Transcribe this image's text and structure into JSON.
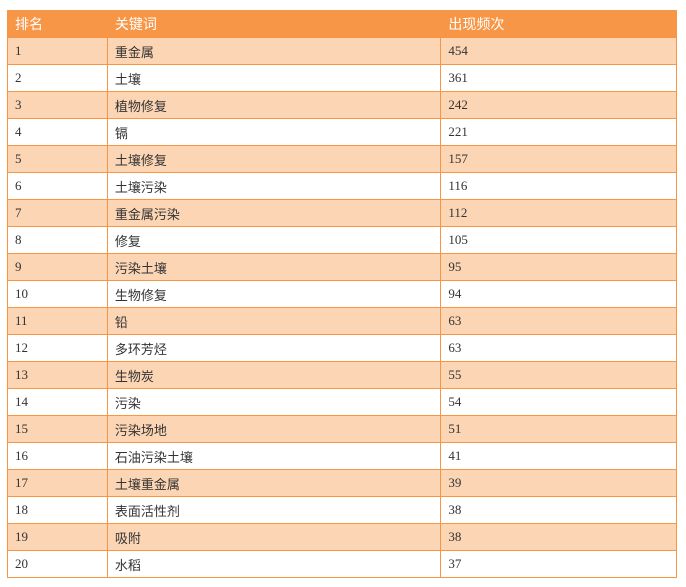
{
  "header": {
    "rank": "排名",
    "keyword": "关键词",
    "count": "出现频次"
  },
  "rows": [
    {
      "rank": "1",
      "keyword": "重金属",
      "count": "454"
    },
    {
      "rank": "2",
      "keyword": "土壤",
      "count": "361"
    },
    {
      "rank": "3",
      "keyword": "植物修复",
      "count": "242"
    },
    {
      "rank": "4",
      "keyword": "镉",
      "count": "221"
    },
    {
      "rank": "5",
      "keyword": "土壤修复",
      "count": "157"
    },
    {
      "rank": "6",
      "keyword": "土壤污染",
      "count": "116"
    },
    {
      "rank": "7",
      "keyword": "重金属污染",
      "count": "112"
    },
    {
      "rank": "8",
      "keyword": "修复",
      "count": "105"
    },
    {
      "rank": "9",
      "keyword": "污染土壤",
      "count": "95"
    },
    {
      "rank": "10",
      "keyword": "生物修复",
      "count": "94"
    },
    {
      "rank": "11",
      "keyword": "铅",
      "count": "63"
    },
    {
      "rank": "12",
      "keyword": "多环芳烃",
      "count": "63"
    },
    {
      "rank": "13",
      "keyword": "生物炭",
      "count": "55"
    },
    {
      "rank": "14",
      "keyword": "污染",
      "count": "54"
    },
    {
      "rank": "15",
      "keyword": "污染场地",
      "count": "51"
    },
    {
      "rank": "16",
      "keyword": "石油污染土壤",
      "count": "41"
    },
    {
      "rank": "17",
      "keyword": "土壤重金属",
      "count": "39"
    },
    {
      "rank": "18",
      "keyword": "表面活性剂",
      "count": "38"
    },
    {
      "rank": "19",
      "keyword": "吸附",
      "count": "38"
    },
    {
      "rank": "20",
      "keyword": "水稻",
      "count": "37"
    }
  ]
}
